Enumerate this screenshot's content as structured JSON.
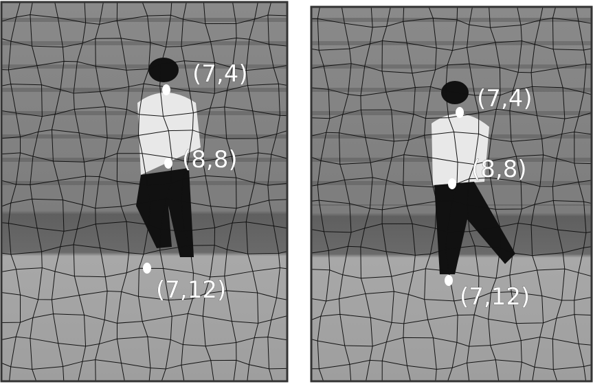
{
  "panels": [
    {
      "points": [
        {
          "label": "(7,4)"
        },
        {
          "label": "(8,8)"
        },
        {
          "label": "(7,12)"
        }
      ]
    },
    {
      "points": [
        {
          "label": "(7,4)"
        },
        {
          "label": "(8,8)"
        },
        {
          "label": "(7,12)"
        }
      ]
    }
  ]
}
